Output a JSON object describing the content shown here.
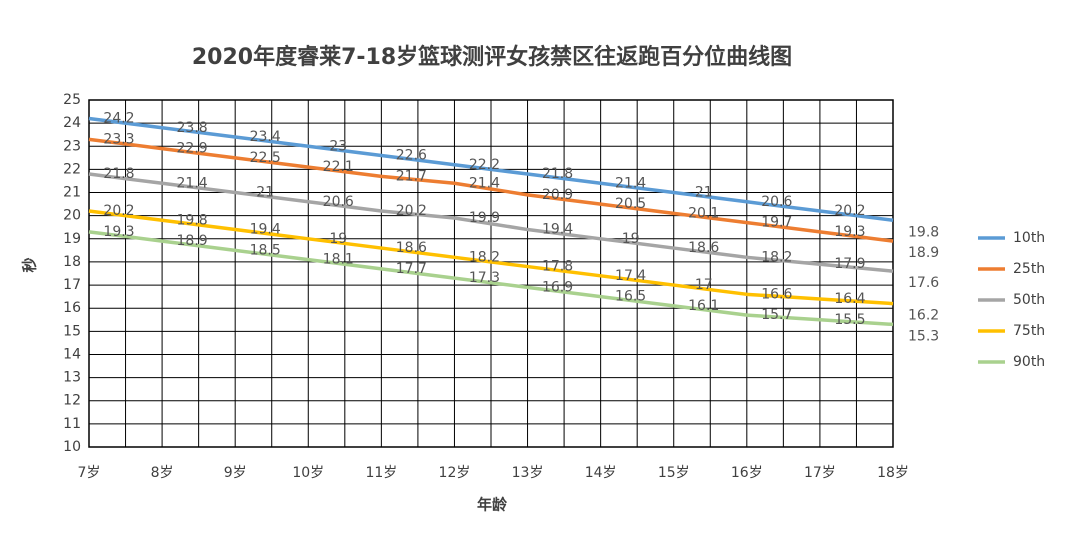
{
  "chart_data": {
    "type": "line",
    "title": "2020年度睿莱7-18岁篮球测评女孩禁区往返跑百分位曲线图",
    "x_label": "年龄",
    "y_label": "秒",
    "categories": [
      "7岁",
      "8岁",
      "9岁",
      "10岁",
      "11岁",
      "12岁",
      "13岁",
      "14岁",
      "15岁",
      "16岁",
      "17岁",
      "18岁"
    ],
    "ylim": [
      10,
      25
    ],
    "yticks": [
      10,
      11,
      12,
      13,
      14,
      15,
      16,
      17,
      18,
      19,
      20,
      21,
      22,
      23,
      24,
      25
    ],
    "grid": true,
    "legend": "right",
    "series": [
      {
        "name": "10th",
        "color": "#5b9bd5",
        "values": [
          24.2,
          23.8,
          23.4,
          23,
          22.6,
          22.2,
          21.8,
          21.4,
          21,
          20.6,
          20.2,
          19.8
        ]
      },
      {
        "name": "25th",
        "color": "#ed7d31",
        "values": [
          23.3,
          22.9,
          22.5,
          22.1,
          21.7,
          21.4,
          20.9,
          20.5,
          20.1,
          19.7,
          19.3,
          18.9
        ]
      },
      {
        "name": "50th",
        "color": "#a5a5a5",
        "values": [
          21.8,
          21.4,
          21,
          20.6,
          20.2,
          19.9,
          19.4,
          19,
          18.6,
          18.2,
          17.9,
          17.6
        ]
      },
      {
        "name": "75th",
        "color": "#ffc000",
        "values": [
          20.2,
          19.8,
          19.4,
          19,
          18.6,
          18.2,
          17.8,
          17.4,
          17,
          16.6,
          16.4,
          16.2
        ]
      },
      {
        "name": "90th",
        "color": "#a9d18e",
        "values": [
          19.3,
          18.9,
          18.5,
          18.1,
          17.7,
          17.3,
          16.9,
          16.5,
          16.1,
          15.7,
          15.5,
          15.3
        ]
      }
    ]
  }
}
